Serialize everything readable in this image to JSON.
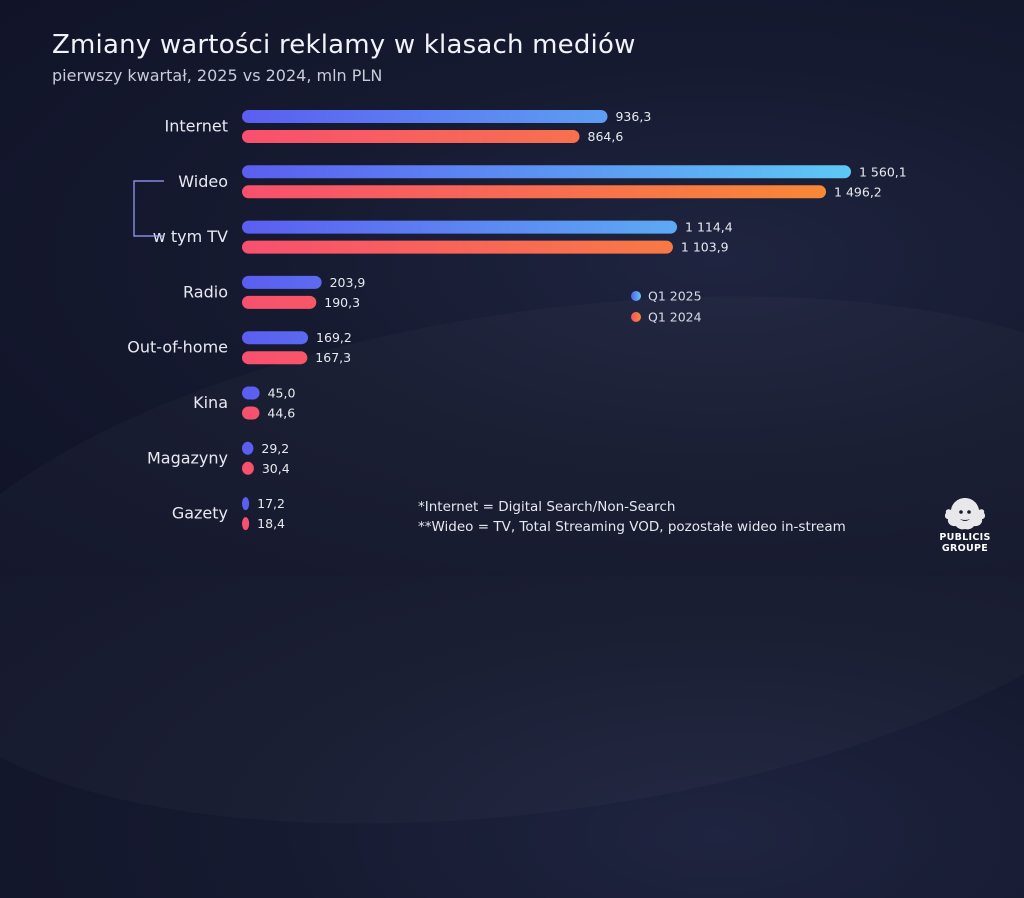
{
  "title": "Zmiany wartości reklamy w klasach mediów",
  "subtitle": "pierwszy kwartał, 2025 vs 2024, mln PLN",
  "chart_data": {
    "type": "bar",
    "orientation": "horizontal",
    "categories": [
      "Internet",
      "Wideo",
      "w tym TV",
      "Radio",
      "Out-of-home",
      "Kina",
      "Magazyny",
      "Gazety"
    ],
    "series": [
      {
        "name": "Q1 2025",
        "values": [
          936.3,
          1560.1,
          1114.4,
          203.9,
          169.2,
          45.0,
          29.2,
          17.2
        ],
        "labels": [
          "936,3",
          "1 560,1",
          "1 114,4",
          "203,9",
          "169,2",
          "45,0",
          "29,2",
          "17,2"
        ],
        "color_start": "#5b5ef0",
        "color_end": "#5ec8f5"
      },
      {
        "name": "Q1 2024",
        "values": [
          864.6,
          1496.2,
          1103.9,
          190.3,
          167.3,
          44.6,
          30.4,
          18.4
        ],
        "labels": [
          "864,6",
          "1 496,2",
          "1 103,9",
          "190,3",
          "167,3",
          "44,6",
          "30,4",
          "18,4"
        ],
        "color_start": "#f8506e",
        "color_end": "#f88a33"
      }
    ],
    "xlim": [
      0,
      1560.1
    ],
    "grid": false,
    "legend_position": "right-middle",
    "bracket_group": [
      "Wideo",
      "w tym TV"
    ]
  },
  "footnotes": [
    "*Internet = Digital Search/Non-Search",
    "**Wideo = TV, Total Streaming VOD, pozostałe wideo in-stream"
  ],
  "logo": {
    "line1": "PUBLICIS",
    "line2": "GROUPE"
  }
}
